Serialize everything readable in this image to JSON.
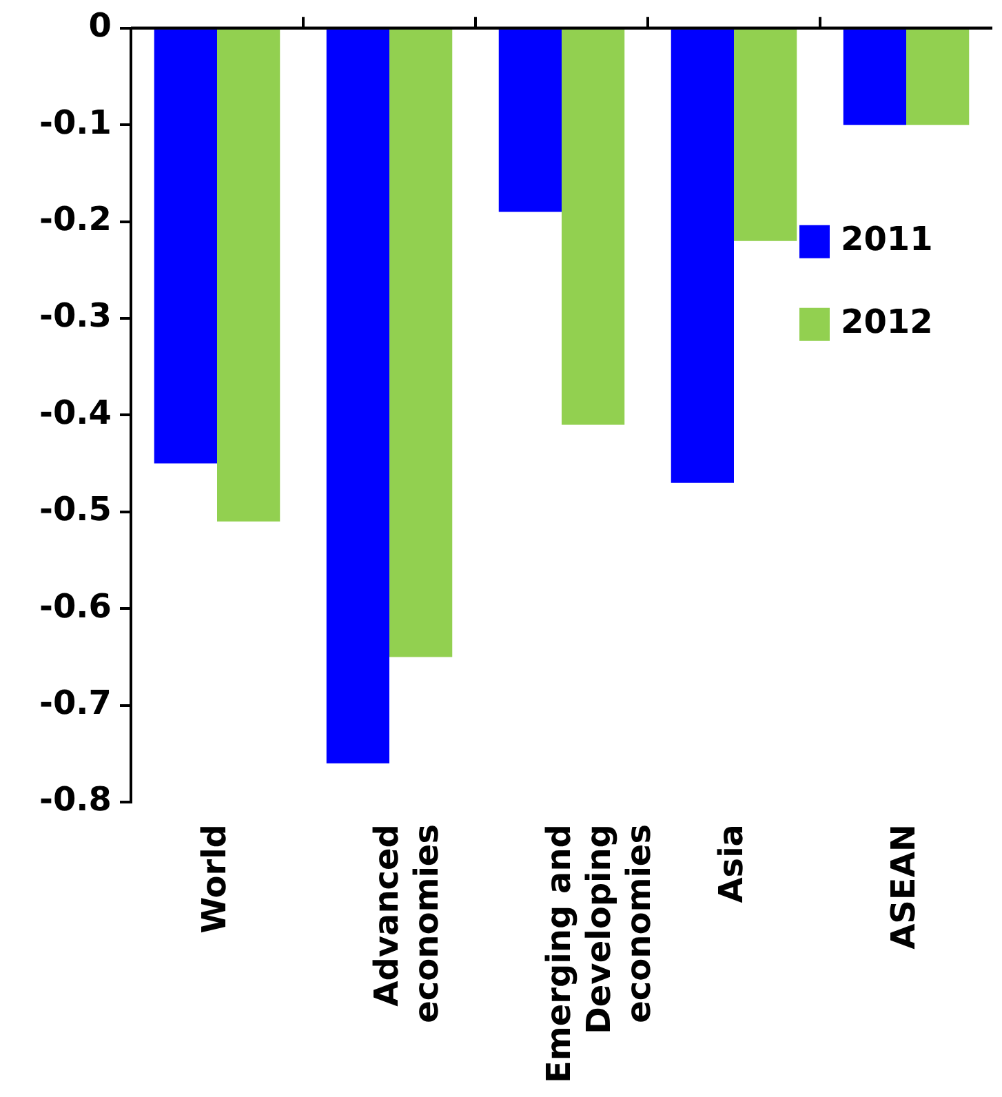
{
  "chart_data": {
    "type": "bar",
    "categories": [
      "World",
      "Advanced\neconomies",
      "Emerging and\nDeveloping\neconomies",
      "Asia",
      "ASEAN"
    ],
    "series": [
      {
        "name": "2011",
        "color": "#0000ff",
        "values": [
          -0.45,
          -0.76,
          -0.19,
          -0.47,
          -0.1
        ]
      },
      {
        "name": "2012",
        "color": "#92d050",
        "values": [
          -0.51,
          -0.65,
          -0.41,
          -0.22,
          -0.1
        ]
      }
    ],
    "ylim": [
      -0.8,
      0
    ],
    "yticks": [
      -0.8,
      -0.7,
      -0.6,
      -0.5,
      -0.4,
      -0.3,
      -0.2,
      -0.1,
      0
    ],
    "grid": false,
    "legend": "right"
  }
}
